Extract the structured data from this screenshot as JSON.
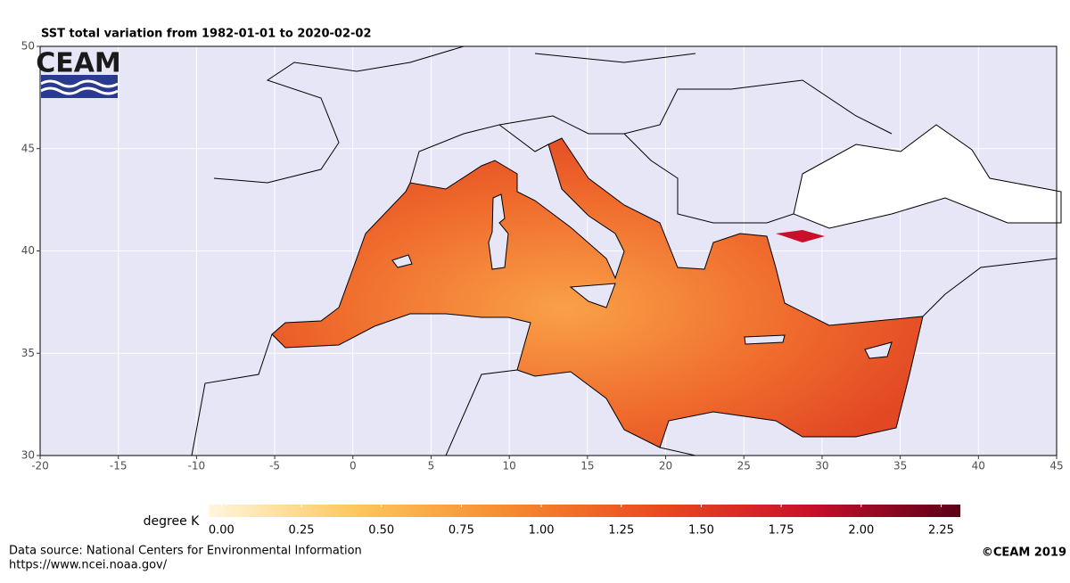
{
  "chart_data": {
    "type": "map",
    "title": "SST total variation from  1982-01-01 to 2020-02-02",
    "logo": "CEAM",
    "xlim": [
      -20,
      45
    ],
    "xticks": [
      -20,
      -15,
      -10,
      -5,
      0,
      5,
      10,
      15,
      20,
      25,
      30,
      35,
      40,
      45
    ],
    "ylim": [
      30,
      50
    ],
    "yticks": [
      30,
      35,
      40,
      45,
      50
    ],
    "grid": true,
    "legend_title": "degree K",
    "colorbar_lim": [
      -0.04,
      2.31
    ],
    "colorbar_ticks": [
      {
        "value": 0,
        "label": "0.00"
      },
      {
        "value": 0.25,
        "label": "0.25"
      },
      {
        "value": 0.5,
        "label": "0.50"
      },
      {
        "value": 0.75,
        "label": "0.75"
      },
      {
        "value": 1,
        "label": "1.00"
      },
      {
        "value": 1.25,
        "label": "1.25"
      },
      {
        "value": 1.5,
        "label": "1.50"
      },
      {
        "value": 1.75,
        "label": "1.75"
      },
      {
        "value": 2,
        "label": "2.00"
      },
      {
        "value": 2.25,
        "label": "2.25"
      }
    ],
    "colormap": [
      "#fff6dd",
      "#fdc65a",
      "#f68a30",
      "#ea4a20",
      "#c8102a",
      "#5a0018"
    ],
    "source": "Data source: National Centers for Environmental Information",
    "source_url": "https://www.ncei.noaa.gov/",
    "copyright": "©CEAM 2019"
  }
}
